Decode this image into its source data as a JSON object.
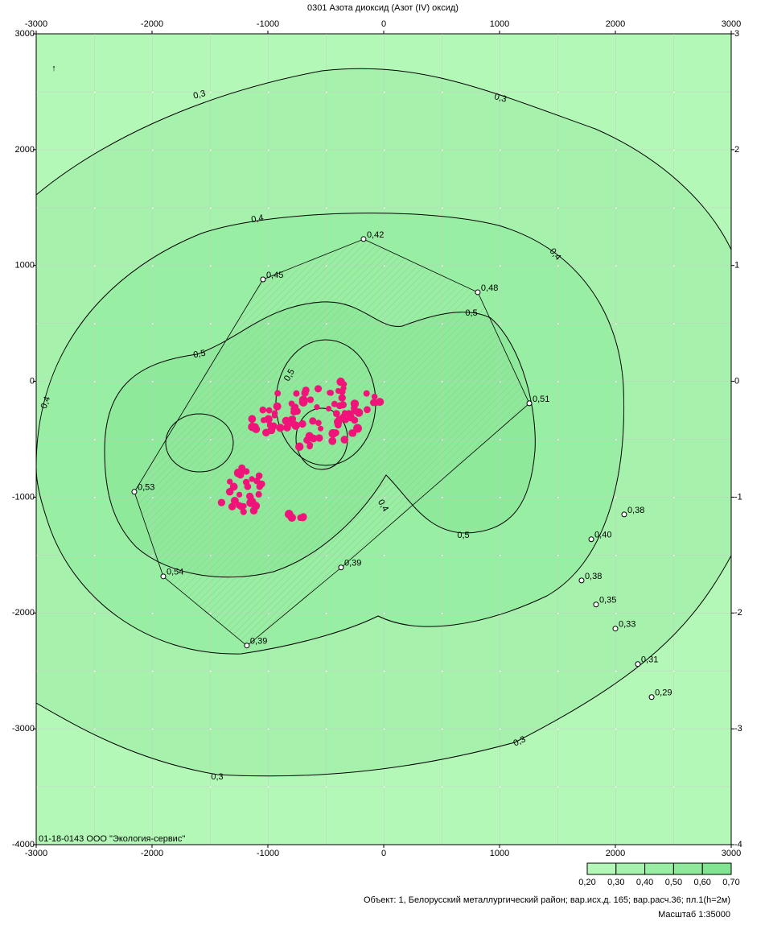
{
  "title": "0301 Азота диоксид (Азот (IV) оксид)",
  "map": {
    "xlim": [
      -3000,
      3000
    ],
    "ylim": [
      -4000,
      3000
    ],
    "xticks": [
      -3000,
      -2000,
      -1000,
      0,
      1000,
      2000,
      3000
    ],
    "yticks": [
      3000,
      2000,
      1000,
      0,
      -1000,
      -2000,
      -3000,
      -4000
    ],
    "right_ticks": [
      {
        "value": 3000,
        "label": "3"
      },
      {
        "value": 2000,
        "label": "2"
      },
      {
        "value": 1000,
        "label": "1"
      },
      {
        "value": 0,
        "label": "0"
      },
      {
        "value": -1000,
        "label": "-1"
      },
      {
        "value": -2000,
        "label": "-2"
      },
      {
        "value": -3000,
        "label": "-3"
      },
      {
        "value": -4000,
        "label": "-4"
      }
    ]
  },
  "contour_labels": [
    "0,3",
    "0,3",
    "0,3",
    "0,3",
    "0,4",
    "0,4",
    "0,4",
    "0,4",
    "0,5",
    "0,5",
    "0,5",
    "0,5"
  ],
  "points": [
    {
      "x": -174,
      "y": 1228,
      "value": 0.42,
      "label": "0,42"
    },
    {
      "x": -1042,
      "y": 880,
      "value": 0.45,
      "label": "0,45"
    },
    {
      "x": 812,
      "y": 769,
      "value": 0.48,
      "label": "0,48"
    },
    {
      "x": 1257,
      "y": -190,
      "value": 0.51,
      "label": "0,51"
    },
    {
      "x": -2153,
      "y": -954,
      "value": 0.53,
      "label": "0,53"
    },
    {
      "x": -1903,
      "y": -1684,
      "value": 0.54,
      "label": "0,54"
    },
    {
      "x": -1181,
      "y": -2281,
      "value": 0.39,
      "label": "0,39"
    },
    {
      "x": -368,
      "y": -1607,
      "value": 0.39,
      "label": "0,39"
    },
    {
      "x": 2076,
      "y": -1149,
      "value": 0.38,
      "label": "0,38"
    },
    {
      "x": 1792,
      "y": -1364,
      "value": 0.4,
      "label": "0,40"
    },
    {
      "x": 1708,
      "y": -1719,
      "value": 0.38,
      "label": "0,38"
    },
    {
      "x": 1833,
      "y": -1927,
      "value": 0.35,
      "label": "0,35"
    },
    {
      "x": 2000,
      "y": -2135,
      "value": 0.33,
      "label": "0,33"
    },
    {
      "x": 2194,
      "y": -2441,
      "value": 0.31,
      "label": "0,31"
    },
    {
      "x": 2313,
      "y": -2726,
      "value": 0.29,
      "label": "0,29"
    }
  ],
  "stamp": "01-18-0143 ООО \"Экология-сервис\"",
  "legend": {
    "values": [
      0.2,
      0.3,
      0.4,
      0.5,
      0.6,
      0.7
    ],
    "labels": [
      "0,20",
      "0,30",
      "0,40",
      "0,50",
      "0,60",
      "0,70"
    ]
  },
  "footer": {
    "object": "Объект: 1, Белорусский металлургический район; вар.исх.д. 165; вар.расч.36; пл.1(h=2м)",
    "scale": "Масштаб 1:35000"
  }
}
